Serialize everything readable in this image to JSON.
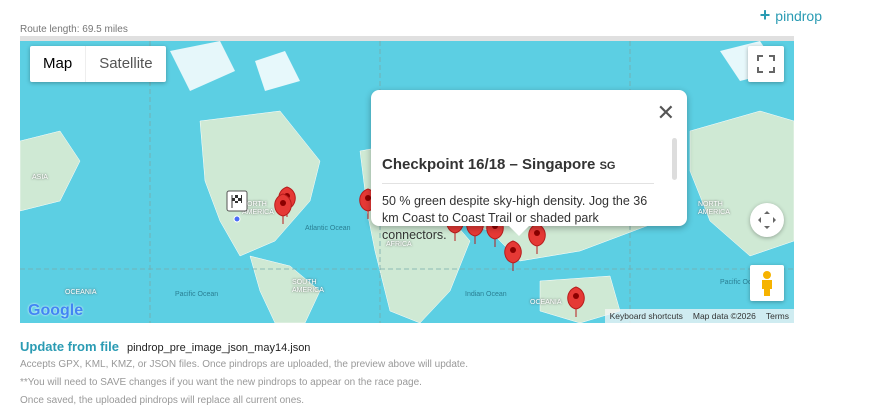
{
  "header": {
    "add_pindrop_label": "pindrop",
    "route_length": "Route length: 69.5 miles"
  },
  "map": {
    "type_controls": [
      {
        "label": "Map",
        "active": true
      },
      {
        "label": "Satellite",
        "active": false
      }
    ],
    "labels": {
      "asia_left": "ASIA",
      "north_america": "NORTH AMERICA",
      "africa": "AFRICA",
      "south_america": "SOUTH AMERICA",
      "north_america_right": "NORTH AMERICA",
      "oceania_left": "OCEANIA",
      "oceania": "OCEANIA"
    },
    "oceans": {
      "atlantic": "Atlantic Ocean",
      "pacific": "Pacific Ocean",
      "indian": "Indian Ocean",
      "pacific_right": "Pacific Ocean"
    },
    "popup": {
      "title": "Checkpoint 16/18 – Singapore",
      "country_code": "SG",
      "body": "50 % green despite sky-high density. Jog the 36 km Coast to Coast Trail or shaded park connectors."
    },
    "attribution": {
      "keyboard": "Keyboard shortcuts",
      "data": "Map data ©2026",
      "terms": "Terms"
    },
    "logo": "Google",
    "marker_color": "#e53935",
    "icons": [
      "fullscreen-icon",
      "pan-control-icon",
      "pegman-icon",
      "checkered-flag-icon",
      "close-icon"
    ]
  },
  "upload": {
    "title": "Update from file",
    "filename": "pindrop_pre_image_json_may14.json",
    "notes": [
      "Accepts GPX, KML, KMZ, or JSON files. Once pindrops are uploaded, the preview above will update.",
      "**You will need to SAVE changes if you want the new pindrops to appear on the race page.",
      "Once saved, the uploaded pindrops will replace all current ones."
    ]
  },
  "accent_color": "#2a9bb3"
}
